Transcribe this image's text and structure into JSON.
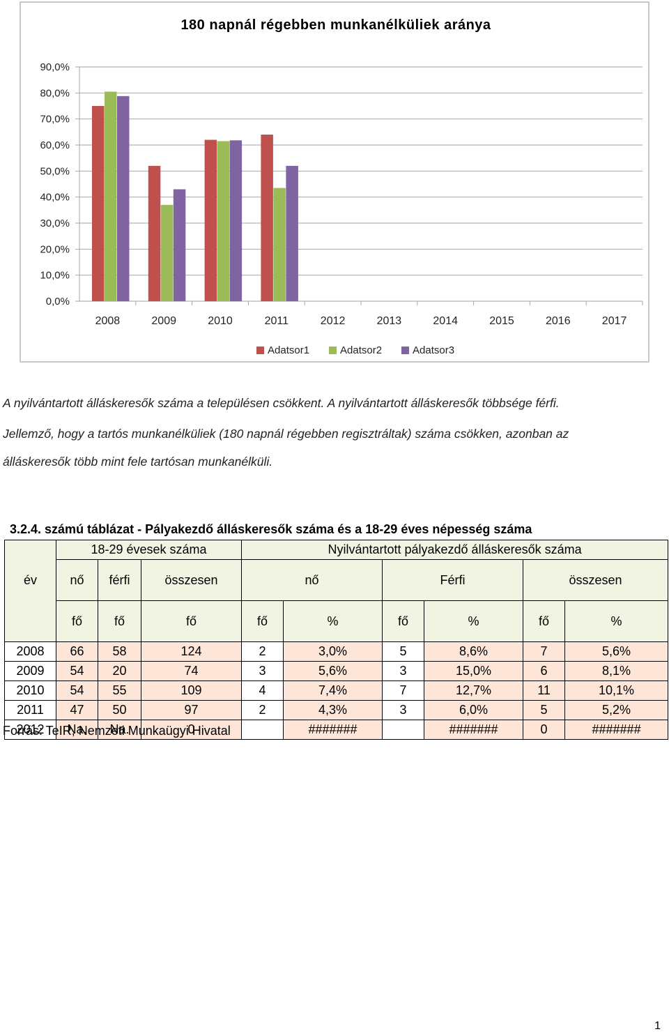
{
  "chart_data": {
    "type": "bar",
    "title": "180 napnál régebben munkanélküliek aránya",
    "categories": [
      "2008",
      "2009",
      "2010",
      "2011",
      "2012",
      "2013",
      "2014",
      "2015",
      "2016",
      "2017"
    ],
    "series": [
      {
        "name": "Adatsor1",
        "color": "#c0504d",
        "values": [
          75.0,
          52.0,
          62.0,
          64.0,
          null,
          null,
          null,
          null,
          null,
          null
        ]
      },
      {
        "name": "Adatsor2",
        "color": "#9bbb59",
        "values": [
          80.5,
          37.0,
          61.5,
          43.5,
          null,
          null,
          null,
          null,
          null,
          null
        ]
      },
      {
        "name": "Adatsor3",
        "color": "#8064a2",
        "values": [
          78.8,
          43.0,
          61.8,
          52.0,
          null,
          null,
          null,
          null,
          null,
          null
        ]
      }
    ],
    "yticks": [
      "0,0%",
      "10,0%",
      "20,0%",
      "30,0%",
      "40,0%",
      "50,0%",
      "60,0%",
      "70,0%",
      "80,0%",
      "90,0%"
    ],
    "ylim": [
      0,
      90
    ],
    "grid": true,
    "legend": "bottom"
  },
  "text": {
    "line1": "A nyilvántartott álláskeresők száma a településen csökkent. A nyilvántartott álláskeresők többsége férfi.",
    "line2": "Jellemző, hogy a tartós munkanélküliek (180 napnál régebben regisztráltak) száma csökken, azonban az",
    "line3": "álláskeresők több mint fele tartósan munkanélküli."
  },
  "table": {
    "title": "3.2.4. számú táblázat - Pályakezdő álláskeresők száma és a 18-29 éves népesség száma",
    "group1": "18-29 évesek száma",
    "group2": "Nyilvántartott pályakezdő álláskeresők száma",
    "col_year": "év",
    "col_no": "nő",
    "col_ferfi": "férfi",
    "col_osszesen": "összesen",
    "col_no2": "nő",
    "col_ferfi2": "Férfi",
    "col_osszesen2": "összesen",
    "units": [
      "fő",
      "fő",
      "fő",
      "fő",
      "%",
      "fő",
      "%",
      "fő",
      "%"
    ],
    "rows": [
      [
        "2008",
        "66",
        "58",
        "124",
        "2",
        "3,0%",
        "5",
        "8,6%",
        "7",
        "5,6%"
      ],
      [
        "2009",
        "54",
        "20",
        "74",
        "3",
        "5,6%",
        "3",
        "15,0%",
        "6",
        "8,1%"
      ],
      [
        "2010",
        "54",
        "55",
        "109",
        "4",
        "7,4%",
        "7",
        "12,7%",
        "11",
        "10,1%"
      ],
      [
        "2011",
        "47",
        "50",
        "97",
        "2",
        "4,3%",
        "3",
        "6,0%",
        "5",
        "5,2%"
      ],
      [
        "2012",
        "Na.",
        "Na.",
        "0",
        "",
        "#######",
        "",
        "#######",
        "0",
        "#######"
      ]
    ],
    "source": "Forrás: TeIR, Nemzeti Munkaügyi Hivatal"
  },
  "page_number": "1"
}
